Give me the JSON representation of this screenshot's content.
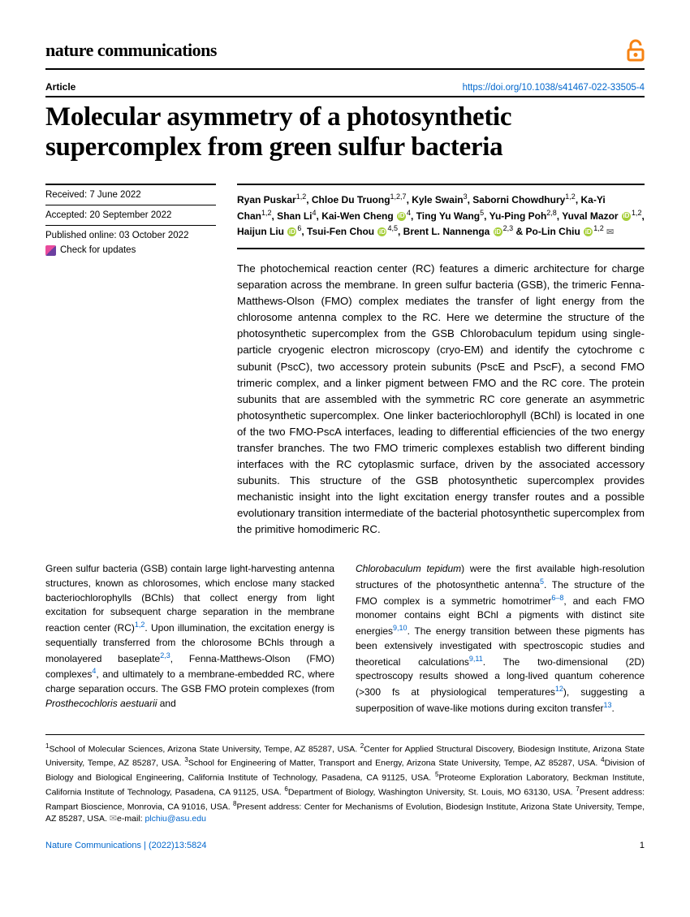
{
  "brand": "nature communications",
  "article_label": "Article",
  "doi_url": "https://doi.org/10.1038/s41467-022-33505-4",
  "title": "Molecular asymmetry of a photosynthetic supercomplex from green sulfur bacteria",
  "dates": {
    "received": "Received: 7 June 2022",
    "accepted": "Accepted: 20 September 2022",
    "published": "Published online: 03 October 2022"
  },
  "check_updates": "Check for updates",
  "authors_html": "Ryan Puskar<sup>1,2</sup>, Chloe Du Truong<sup>1,2,7</sup>, Kyle Swain<sup>3</sup>, Saborni Chowdhury<sup>1,2</sup>, Ka-Yi Chan<sup>1,2</sup>, Shan Li<sup>4</sup>, Kai-Wen Cheng <span class='orcid'>iD</span><sup>4</sup>, Ting Yu Wang<sup>5</sup>, Yu-Ping Poh<sup>2,8</sup>, Yuval Mazor <span class='orcid'>iD</span><sup>1,2</sup>, Haijun Liu <span class='orcid'>iD</span><sup>6</sup>, Tsui-Fen Chou <span class='orcid'>iD</span><sup>4,5</sup>, Brent L. Nannenga <span class='orcid'>iD</span><sup>2,3</sup> & Po-Lin Chiu <span class='orcid'>iD</span><sup>1,2</sup> <span class='mail'>✉</span>",
  "abstract": "The photochemical reaction center (RC) features a dimeric architecture for charge separation across the membrane. In green sulfur bacteria (GSB), the trimeric Fenna-Matthews-Olson (FMO) complex mediates the transfer of light energy from the chlorosome antenna complex to the RC. Here we determine the structure of the photosynthetic supercomplex from the GSB Chlorobaculum tepidum using single-particle cryogenic electron microscopy (cryo-EM) and identify the cytochrome c subunit (PscC), two accessory protein subunits (PscE and PscF), a second FMO trimeric complex, and a linker pigment between FMO and the RC core. The protein subunits that are assembled with the symmetric RC core generate an asymmetric photosynthetic supercomplex. One linker bacteriochlorophyll (BChl) is located in one of the two FMO-PscA interfaces, leading to differential efficiencies of the two energy transfer branches. The two FMO trimeric complexes establish two different binding interfaces with the RC cytoplasmic surface, driven by the associated accessory subunits. This structure of the GSB photosynthetic supercomplex provides mechanistic insight into the light excitation energy transfer routes and a possible evolutionary transition intermediate of the bacterial photosynthetic supercomplex from the primitive homodimeric RC.",
  "body_left_html": "Green sulfur bacteria (GSB) contain large light-harvesting antenna structures, known as chlorosomes, which enclose many stacked bacteriochlorophylls (BChls) that collect energy from light excitation for subsequent charge separation in the membrane reaction center (RC)<sup>1,2</sup>. Upon illumination, the excitation energy is sequentially transferred from the chlorosome BChls through a monolayered baseplate<sup>2,3</sup>, Fenna-Matthews-Olson (FMO) complexes<sup>4</sup>, and ultimately to a membrane-embedded RC, where charge separation occurs. The GSB FMO protein complexes (from <i>Prosthecochloris aestuarii</i> and",
  "body_right_html": "<i>Chlorobaculum tepidum</i>) were the first available high-resolution structures of the photosynthetic antenna<sup>5</sup>. The structure of the FMO complex is a symmetric homotrimer<sup>6–8</sup>, and each FMO monomer contains eight BChl <i>a</i> pigments with distinct site energies<sup>9,10</sup>. The energy transition between these pigments has been extensively investigated with spectroscopic studies and theoretical calculations<sup>9,11</sup>. The two-dimensional (2D) spectroscopy results showed a long-lived quantum coherence (>300 fs at physiological temperatures<sup>12</sup>), suggesting a superposition of wave-like motions during exciton transfer<sup>13</sup>.",
  "affiliations_html": "<sup>1</sup>School of Molecular Sciences, Arizona State University, Tempe, AZ 85287, USA. <sup>2</sup>Center for Applied Structural Discovery, Biodesign Institute, Arizona State University, Tempe, AZ 85287, USA. <sup>3</sup>School for Engineering of Matter, Transport and Energy, Arizona State University, Tempe, AZ 85287, USA. <sup>4</sup>Division of Biology and Biological Engineering, California Institute of Technology, Pasadena, CA 91125, USA. <sup>5</sup>Proteome Exploration Laboratory, Beckman Institute, California Institute of Technology, Pasadena, CA 91125, USA. <sup>6</sup>Department of Biology, Washington University, St. Louis, MO 63130, USA. <sup>7</sup>Present address: Rampart Bioscience, Monrovia, CA 91016, USA. <sup>8</sup>Present address: Center for Mechanisms of Evolution, Biodesign Institute, Arizona State University, Tempe, AZ 85287, USA. <span class='mail'>✉</span>e-mail: <span class='email'>plchiu@asu.edu</span>",
  "footer": {
    "citation": "Nature Communications | (2022)13:5824",
    "page": "1"
  },
  "colors": {
    "link": "#0066cc",
    "oa_orange": "#f68212",
    "text": "#000000"
  }
}
